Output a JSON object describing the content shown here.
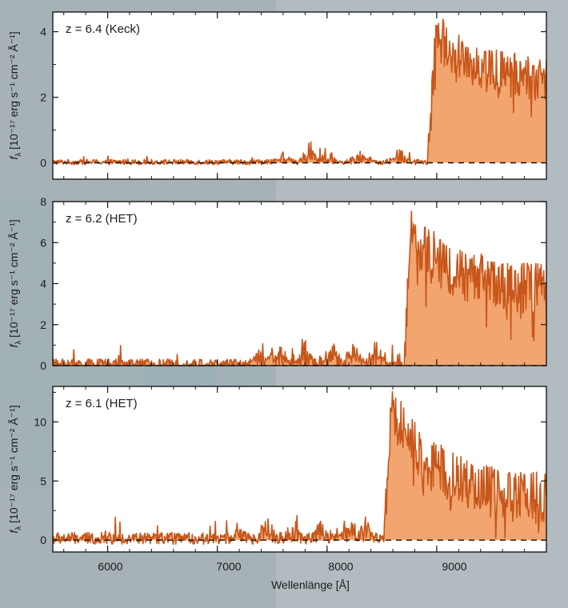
{
  "colors": {
    "fill": "#f2a56e",
    "line": "#c8561a",
    "frame": "#1a1a1a",
    "plot_bg": "#ffffff",
    "page_bg": "#a7b2b6"
  },
  "chart_data": [
    {
      "type": "area",
      "panel_label": "z = 6.4 (Keck)",
      "redshift": 6.4,
      "telescope": "Keck",
      "xlim": [
        5500,
        10000
      ],
      "ylim": [
        -0.5,
        4.6
      ],
      "yticks": [
        "0",
        "2",
        "4"
      ],
      "grid": false,
      "dashed_zero_line": true,
      "profile": {
        "noise_level": 0.08,
        "bumps": [
          [
            7600,
            0.3
          ],
          [
            7850,
            0.6
          ],
          [
            8000,
            0.5
          ],
          [
            8300,
            0.4
          ],
          [
            8650,
            0.5
          ]
        ],
        "edge": 8920,
        "peak_x": 9020,
        "peak_y": 3.8,
        "plateau": 2.4,
        "plateau_noise": 0.7
      }
    },
    {
      "type": "area",
      "panel_label": "z = 6.2 (HET)",
      "redshift": 6.2,
      "telescope": "HET",
      "xlim": [
        5500,
        10000
      ],
      "ylim": [
        0,
        8
      ],
      "yticks": [
        "0",
        "2",
        "4",
        "6",
        "8"
      ],
      "grid": false,
      "dashed_zero_line": true,
      "profile": {
        "noise_level": 0.25,
        "bumps": [
          [
            7400,
            1.0
          ],
          [
            7550,
            1.2
          ],
          [
            7800,
            1.4
          ],
          [
            8050,
            1.2
          ],
          [
            8250,
            1.1
          ],
          [
            8450,
            1.3
          ]
        ],
        "edge": 8700,
        "peak_x": 8780,
        "peak_y": 6.3,
        "plateau": 3.6,
        "plateau_noise": 1.3
      }
    },
    {
      "type": "area",
      "panel_label": "z = 6.1 (HET)",
      "redshift": 6.1,
      "telescope": "HET",
      "xlim": [
        5500,
        10000
      ],
      "ylim": [
        -1,
        13
      ],
      "yticks": [
        "0",
        "5",
        "10"
      ],
      "grid": false,
      "dashed_zero_line": true,
      "profile": {
        "noise_level": 0.5,
        "bumps": [
          [
            7200,
            1.2
          ],
          [
            7450,
            1.5
          ],
          [
            7700,
            1.5
          ],
          [
            7950,
            1.6
          ],
          [
            8200,
            2.0
          ],
          [
            8350,
            1.8
          ]
        ],
        "edge": 8520,
        "peak_x": 8590,
        "peak_y": 11.2,
        "plateau": 3.2,
        "plateau_noise": 2.2
      }
    }
  ],
  "shared_axes": {
    "xlabel": "Wellenlänge [Å]",
    "xticks": [
      "6000",
      "7000",
      "8000",
      "9000"
    ],
    "ylabel_prefix": "f",
    "ylabel_sub": "λ",
    "ylabel_unit": "[10⁻¹⁷ erg s⁻¹ cm⁻² Å⁻¹]"
  }
}
